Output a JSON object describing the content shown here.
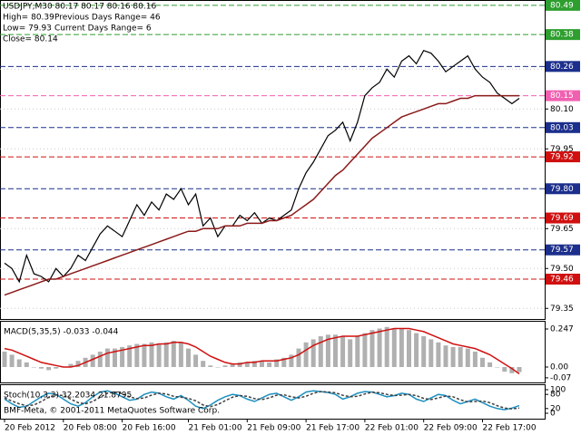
{
  "chart_data": [
    {
      "type": "line",
      "annotations": [
        "USDJPY,M30  80.17 80.17 80.16 80.16",
        "High= 80.39",
        "Previous Days Range= 46",
        "Low= 79.93",
        "Current Days Range= 6",
        "Close= 80.14"
      ],
      "categories": [
        "20 Feb 2012",
        null,
        null,
        null,
        null,
        null,
        null,
        null,
        "20 Feb 08:00",
        null,
        null,
        null,
        null,
        null,
        null,
        null,
        "20 Feb 16:00",
        null,
        null,
        null,
        null,
        null,
        null,
        null,
        null,
        "21 Feb 01:00",
        null,
        null,
        null,
        null,
        null,
        null,
        null,
        "21 Feb 09:00",
        null,
        null,
        null,
        null,
        null,
        null,
        null,
        "21 Feb 17:00",
        null,
        null,
        null,
        null,
        null,
        null,
        null,
        "22 Feb 01:00",
        null,
        null,
        null,
        null,
        null,
        null,
        null,
        "22 Feb 09:00",
        null,
        null,
        null,
        null,
        null,
        null,
        null,
        "22 Feb 17:00",
        null,
        null,
        null,
        null,
        null
      ],
      "series": [
        {
          "color": "#000000",
          "values": [
            79.52,
            79.5,
            79.45,
            79.55,
            79.48,
            79.47,
            79.45,
            79.5,
            79.47,
            79.5,
            79.55,
            79.53,
            79.58,
            79.63,
            79.66,
            79.64,
            79.62,
            79.68,
            79.74,
            79.7,
            79.75,
            79.72,
            79.78,
            79.76,
            79.8,
            79.74,
            79.78,
            79.66,
            79.69,
            79.62,
            79.66,
            79.66,
            79.7,
            79.68,
            79.71,
            79.67,
            79.69,
            79.68,
            79.7,
            79.72,
            79.8,
            79.86,
            79.9,
            79.95,
            80.0,
            80.02,
            80.05,
            79.98,
            80.05,
            80.15,
            80.18,
            80.2,
            80.25,
            80.22,
            80.28,
            80.3,
            80.27,
            80.32,
            80.31,
            80.28,
            80.24,
            80.26,
            80.28,
            80.3,
            80.25,
            80.22,
            80.2,
            80.16,
            80.14,
            80.12,
            80.14
          ]
        },
        {
          "color": "#8b1a1a",
          "values": [
            79.4,
            79.41,
            79.42,
            79.43,
            79.44,
            79.45,
            79.46,
            79.46,
            79.47,
            79.48,
            79.49,
            79.5,
            79.51,
            79.52,
            79.53,
            79.54,
            79.55,
            79.56,
            79.57,
            79.58,
            79.59,
            79.6,
            79.61,
            79.62,
            79.63,
            79.64,
            79.64,
            79.65,
            79.65,
            79.65,
            79.66,
            79.66,
            79.66,
            79.67,
            79.67,
            79.67,
            79.68,
            79.68,
            79.69,
            79.7,
            79.72,
            79.74,
            79.76,
            79.79,
            79.82,
            79.85,
            79.87,
            79.9,
            79.93,
            79.96,
            79.99,
            80.01,
            80.03,
            80.05,
            80.07,
            80.08,
            80.09,
            80.1,
            80.11,
            80.12,
            80.12,
            80.13,
            80.14,
            80.14,
            80.15,
            80.15,
            80.15,
            80.15,
            80.15,
            80.15,
            80.15
          ]
        }
      ],
      "ylim": [
        79.31,
        80.51
      ],
      "yticks": [
        79.35,
        {
          "value": 79.5,
          "label": "79.50"
        },
        79.65,
        79.95,
        {
          "value": 80.1,
          "label": "80.10"
        },
        80.25
      ],
      "levels": [
        {
          "value": 80.49,
          "color": "#2e9e2e"
        },
        {
          "value": 80.38,
          "color": "#2e9e2e"
        },
        {
          "value": 80.26,
          "color": "#1c2f8c"
        },
        {
          "value": 80.15,
          "color": "#f060b0"
        },
        {
          "value": 80.03,
          "color": "#1c2f8c"
        },
        {
          "value": 79.92,
          "color": "#d01010"
        },
        {
          "value": 79.8,
          "label": "79.80",
          "color": "#1c2f8c"
        },
        {
          "value": 79.69,
          "color": "#d01010"
        },
        {
          "value": 79.57,
          "color": "#1c2f8c"
        },
        {
          "value": 79.46,
          "color": "#d01010"
        }
      ],
      "grid": true
    },
    {
      "type": "bar",
      "title": "MACD(5,35,5) -0.033 -0.044",
      "series": [
        {
          "color": "#b0b0b0",
          "values": [
            0.1,
            0.08,
            0.05,
            0.03,
            0.0,
            -0.01,
            -0.02,
            -0.01,
            0.0,
            0.02,
            0.04,
            0.06,
            0.08,
            0.1,
            0.12,
            0.12,
            0.13,
            0.14,
            0.15,
            0.15,
            0.16,
            0.15,
            0.16,
            0.17,
            0.16,
            0.12,
            0.08,
            0.04,
            0.01,
            0.0,
            0.01,
            0.02,
            0.03,
            0.03,
            0.04,
            0.04,
            0.03,
            0.05,
            0.06,
            0.08,
            0.12,
            0.16,
            0.18,
            0.2,
            0.21,
            0.21,
            0.2,
            0.18,
            0.2,
            0.22,
            0.24,
            0.25,
            0.26,
            0.25,
            0.25,
            0.24,
            0.22,
            0.2,
            0.18,
            0.16,
            0.14,
            0.13,
            0.13,
            0.12,
            0.1,
            0.06,
            0.03,
            0.0,
            -0.03,
            -0.04,
            -0.033
          ]
        },
        {
          "color": "#d01010",
          "style": "line",
          "values": [
            0.12,
            0.11,
            0.09,
            0.07,
            0.05,
            0.03,
            0.02,
            0.01,
            0.0,
            0.0,
            0.01,
            0.03,
            0.05,
            0.07,
            0.09,
            0.1,
            0.11,
            0.12,
            0.13,
            0.14,
            0.14,
            0.15,
            0.15,
            0.16,
            0.16,
            0.15,
            0.13,
            0.1,
            0.07,
            0.05,
            0.03,
            0.02,
            0.02,
            0.03,
            0.03,
            0.04,
            0.04,
            0.04,
            0.05,
            0.06,
            0.08,
            0.11,
            0.14,
            0.16,
            0.18,
            0.19,
            0.2,
            0.2,
            0.2,
            0.21,
            0.22,
            0.23,
            0.24,
            0.25,
            0.25,
            0.25,
            0.24,
            0.23,
            0.21,
            0.19,
            0.17,
            0.15,
            0.14,
            0.13,
            0.12,
            0.1,
            0.08,
            0.05,
            0.02,
            -0.01,
            -0.044
          ]
        }
      ],
      "ylim": [
        -0.1,
        0.3
      ],
      "yticks": [
        -0.07,
        {
          "value": 0,
          "label": "0.00"
        },
        0.247
      ]
    },
    {
      "type": "line",
      "title": "Stoch(10,3,3) 32.2034 21.8795",
      "annotations": [
        "BMF-Meta, © 2001-2011 MetaQuotes Software Corp."
      ],
      "series": [
        {
          "color": "#1e90c0",
          "values": [
            60,
            40,
            25,
            30,
            50,
            70,
            85,
            80,
            60,
            40,
            30,
            45,
            70,
            90,
            95,
            85,
            70,
            55,
            60,
            80,
            90,
            85,
            70,
            60,
            75,
            55,
            30,
            20,
            35,
            55,
            70,
            80,
            75,
            60,
            50,
            65,
            80,
            85,
            70,
            55,
            70,
            90,
            95,
            92,
            88,
            80,
            60,
            70,
            85,
            92,
            90,
            80,
            70,
            75,
            85,
            80,
            60,
            50,
            65,
            80,
            75,
            55,
            40,
            50,
            60,
            45,
            30,
            20,
            15,
            22,
            32.2034
          ]
        },
        {
          "color": "#404040",
          "style": "dash",
          "values": [
            65,
            52,
            40,
            32,
            35,
            50,
            68,
            78,
            75,
            60,
            45,
            40,
            50,
            68,
            85,
            90,
            83,
            70,
            62,
            65,
            77,
            85,
            82,
            72,
            68,
            63,
            53,
            35,
            28,
            37,
            53,
            68,
            75,
            72,
            62,
            58,
            65,
            77,
            78,
            70,
            65,
            72,
            85,
            92,
            90,
            87,
            76,
            70,
            72,
            82,
            89,
            87,
            80,
            75,
            77,
            80,
            75,
            63,
            58,
            65,
            73,
            70,
            57,
            48,
            50,
            52,
            45,
            32,
            22,
            19,
            21.8795
          ]
        }
      ],
      "ylim": [
        -23,
        123
      ],
      "yticks": [
        0,
        20,
        80,
        100
      ]
    }
  ]
}
